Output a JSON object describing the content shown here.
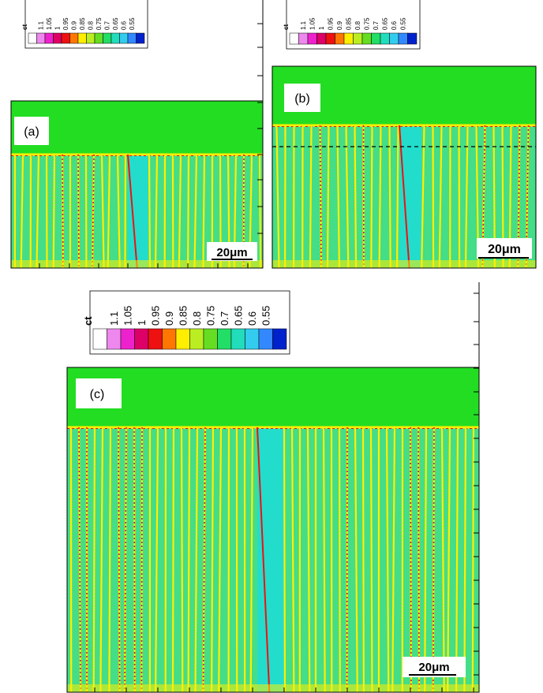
{
  "panels": [
    {
      "id": "a",
      "label": "(a)",
      "scale_bar": "20μm"
    },
    {
      "id": "b",
      "label": "(b)",
      "scale_bar": "20μm"
    },
    {
      "id": "c",
      "label": "(c)",
      "scale_bar": "20μm"
    }
  ],
  "legend": {
    "title": "ct",
    "values": [
      "1.1",
      "1.05",
      "1",
      "0.95",
      "0.9",
      "0.85",
      "0.8",
      "0.75",
      "0.7",
      "0.65",
      "0.6",
      "0.55"
    ],
    "colors": [
      "#ffffff",
      "#ee88ee",
      "#ee22cc",
      "#dd0066",
      "#ee1111",
      "#ff7700",
      "#ffee00",
      "#bbee22",
      "#66dd22",
      "#22dd66",
      "#22ddbb",
      "#33ccee",
      "#3388ff",
      "#0022cc"
    ]
  },
  "colors": {
    "liquid": "#22dd22",
    "solid": "#44dd88",
    "boundary": "#ffee00",
    "segregation": "#ee1111",
    "core": "#22ddcc"
  }
}
